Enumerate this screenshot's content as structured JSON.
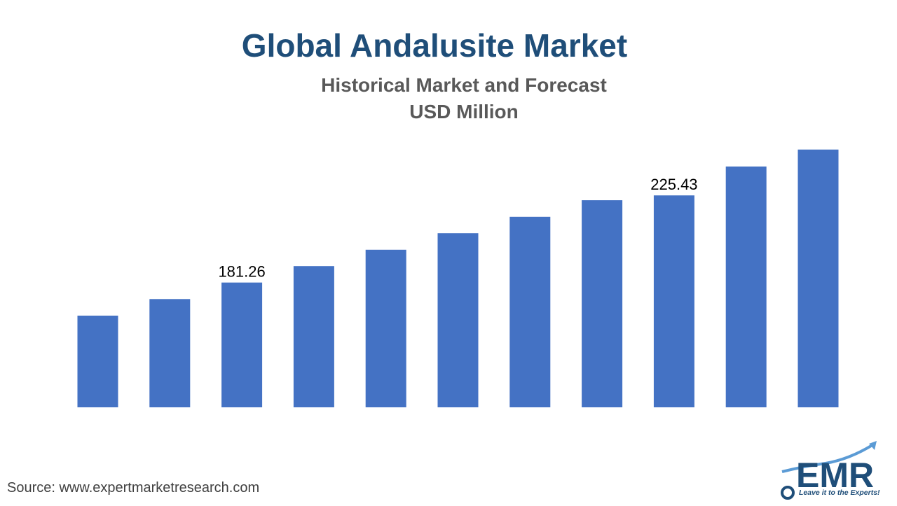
{
  "header": {
    "title": "Global Andalusite Market",
    "subtitle_line1": "Historical Market and Forecast",
    "subtitle_line2": "USD Million"
  },
  "footer": {
    "source": "Source: www.expertmarketresearch.com"
  },
  "logo": {
    "text": "EMR",
    "tagline": "Leave it to the Experts!"
  },
  "colors": {
    "bar": "#4472c4",
    "title": "#1f4e79",
    "subtitle": "#595959",
    "logo_text": "#1f4e79",
    "logo_arrow": "#5b9bd5"
  },
  "chart_data": {
    "type": "bar",
    "title": "Global Andalusite Market",
    "subtitle": "Historical Market and Forecast USD Million",
    "series": [
      {
        "values": [
          164.5,
          172.9,
          181.26,
          189.6,
          197.9,
          206.3,
          214.6,
          223.0,
          225.43,
          240.1,
          248.7
        ],
        "labels": [
          "",
          "",
          "181.26",
          "",
          "",
          "",
          "",
          "",
          "225.43",
          "",
          ""
        ]
      }
    ],
    "ylim": [
      118,
      250
    ],
    "grid": false,
    "legend": "none",
    "axes_visible": false
  }
}
